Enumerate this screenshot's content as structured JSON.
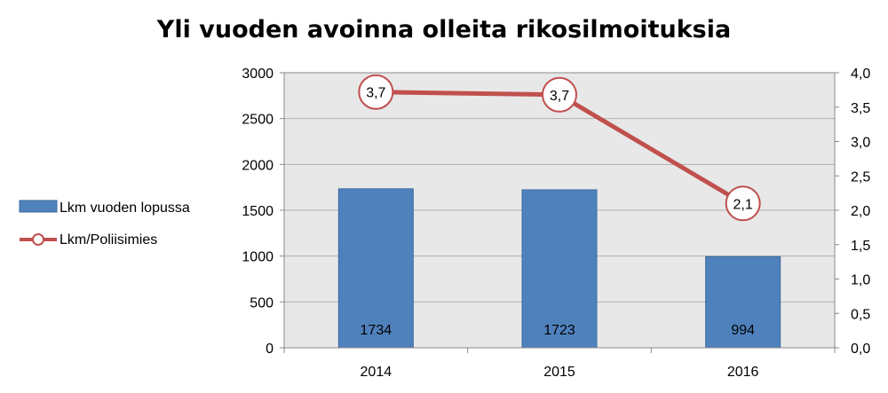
{
  "chart_data": {
    "type": "bar+line",
    "title": "Yli vuoden avoinna olleita rikosilmoituksia",
    "categories": [
      "2014",
      "2015",
      "2016"
    ],
    "series": [
      {
        "name": "Lkm vuoden lopussa",
        "type": "bar",
        "axis": "left",
        "values": [
          1734,
          1723,
          994
        ],
        "labels": [
          "1734",
          "1723",
          "994"
        ],
        "color": "#4F81BD"
      },
      {
        "name": "Lkm/Poliisimies",
        "type": "line",
        "axis": "right",
        "values": [
          3.72,
          3.68,
          2.1
        ],
        "labels": [
          "3,7",
          "3,7",
          "2,1"
        ],
        "color": "#C0504D"
      }
    ],
    "y_left": {
      "min": 0,
      "max": 3000,
      "step": 500,
      "ticks": [
        "0",
        "500",
        "1000",
        "1500",
        "2000",
        "2500",
        "3000"
      ]
    },
    "y_right": {
      "min": 0,
      "max": 4.0,
      "step": 0.5,
      "ticks": [
        "0,0",
        "0,5",
        "1,0",
        "1,5",
        "2,0",
        "2,5",
        "3,0",
        "3,5",
        "4,0"
      ]
    },
    "grid": true,
    "legend_position": "left",
    "plot_background": "#E8E8E8"
  }
}
